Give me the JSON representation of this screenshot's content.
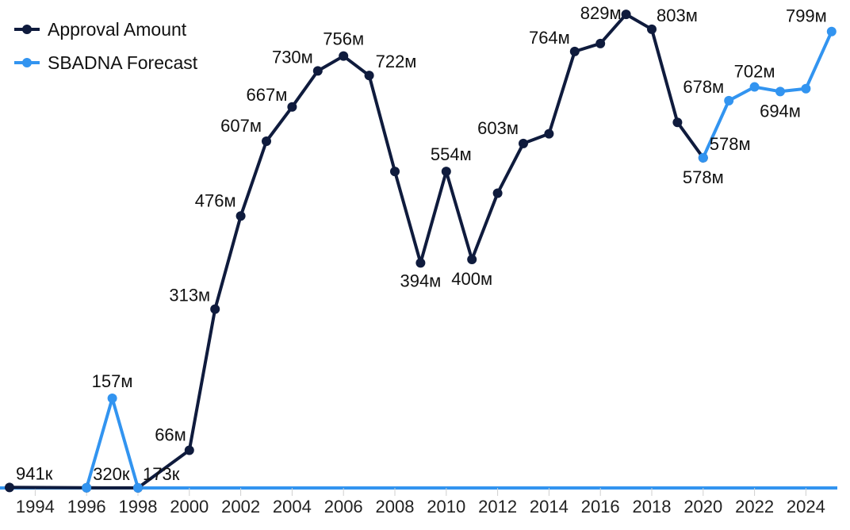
{
  "chart_data": {
    "type": "line",
    "title": "",
    "xlabel": "",
    "ylabel": "",
    "x_ticks": [
      "1994",
      "1996",
      "1998",
      "2000",
      "2002",
      "2004",
      "2006",
      "2008",
      "2010",
      "2012",
      "2014",
      "2016",
      "2018",
      "2020",
      "2022",
      "2024"
    ],
    "legend_position": "top-left",
    "grid": false,
    "colors": {
      "approval": "#0f1b3d",
      "forecast": "#3294f0",
      "axis": "#3294f0"
    },
    "series": [
      {
        "name": "Approval Amount",
        "color": "#0f1b3d",
        "points": [
          {
            "x": 1993,
            "y": 0.941,
            "label": "941к"
          },
          {
            "x": 1996,
            "y": 0.32,
            "label": "320к"
          },
          {
            "x": 1998,
            "y": 0.173,
            "label": "173к"
          },
          {
            "x": 2000,
            "y": 66,
            "label": "66м"
          },
          {
            "x": 2001,
            "y": 313,
            "label": "313м"
          },
          {
            "x": 2002,
            "y": 476,
            "label": "476м"
          },
          {
            "x": 2003,
            "y": 607,
            "label": "607м"
          },
          {
            "x": 2004,
            "y": 667,
            "label": "667м"
          },
          {
            "x": 2005,
            "y": 730,
            "label": "730м"
          },
          {
            "x": 2006,
            "y": 756,
            "label": "756м"
          },
          {
            "x": 2007,
            "y": 722,
            "label": "722м"
          },
          {
            "x": 2008,
            "y": 554,
            "label": ""
          },
          {
            "x": 2009,
            "y": 394,
            "label": "394м"
          },
          {
            "x": 2010,
            "y": 554,
            "label": "554м"
          },
          {
            "x": 2011,
            "y": 400,
            "label": "400м"
          },
          {
            "x": 2012,
            "y": 516,
            "label": ""
          },
          {
            "x": 2013,
            "y": 603,
            "label": "603м"
          },
          {
            "x": 2014,
            "y": 620,
            "label": ""
          },
          {
            "x": 2015,
            "y": 764,
            "label": "764м"
          },
          {
            "x": 2016,
            "y": 778,
            "label": ""
          },
          {
            "x": 2017,
            "y": 829,
            "label": "829м"
          },
          {
            "x": 2018,
            "y": 803,
            "label": "803м"
          },
          {
            "x": 2019,
            "y": 640,
            "label": ""
          },
          {
            "x": 2020,
            "y": 578,
            "label": "578м"
          }
        ]
      },
      {
        "name": "SBADNA Forecast",
        "color": "#3294f0",
        "points": [
          {
            "x": 1996,
            "y": 0.32,
            "label": ""
          },
          {
            "x": 1997,
            "y": 157,
            "label": "157м"
          },
          {
            "x": 1998,
            "y": 0.173,
            "label": ""
          },
          {
            "x": 2020,
            "y": 578,
            "label": "578м"
          },
          {
            "x": 2021,
            "y": 678,
            "label": "678м"
          },
          {
            "x": 2022,
            "y": 702,
            "label": "702м"
          },
          {
            "x": 2023,
            "y": 694,
            "label": "694м"
          },
          {
            "x": 2024,
            "y": 699,
            "label": ""
          },
          {
            "x": 2025,
            "y": 799,
            "label": "799м"
          }
        ]
      }
    ]
  }
}
